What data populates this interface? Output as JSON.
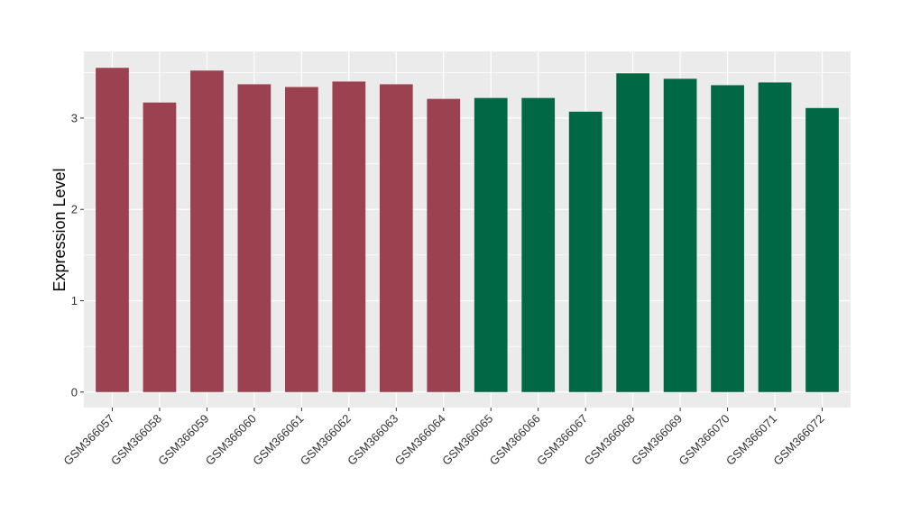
{
  "chart_data": {
    "type": "bar",
    "title": "",
    "xlabel": "",
    "ylabel": "Expression Level",
    "categories": [
      "GSM366057",
      "GSM366058",
      "GSM366059",
      "GSM366060",
      "GSM366061",
      "GSM366062",
      "GSM366063",
      "GSM366064",
      "GSM366065",
      "GSM366066",
      "GSM366067",
      "GSM366068",
      "GSM366069",
      "GSM366070",
      "GSM366071",
      "GSM366072"
    ],
    "values": [
      3.55,
      3.17,
      3.52,
      3.37,
      3.34,
      3.4,
      3.37,
      3.21,
      3.22,
      3.22,
      3.07,
      3.49,
      3.43,
      3.36,
      3.39,
      3.11
    ],
    "bar_colors": [
      "#9b4150",
      "#9b4150",
      "#9b4150",
      "#9b4150",
      "#9b4150",
      "#9b4150",
      "#9b4150",
      "#9b4150",
      "#006845",
      "#006845",
      "#006845",
      "#006845",
      "#006845",
      "#006845",
      "#006845",
      "#006845"
    ],
    "ylim": [
      -0.17,
      3.73
    ],
    "yticks": [
      0,
      1,
      2,
      3
    ],
    "grid": true,
    "legend": "none",
    "panel_background": "#ebebeb",
    "grid_color": "#ffffff"
  }
}
